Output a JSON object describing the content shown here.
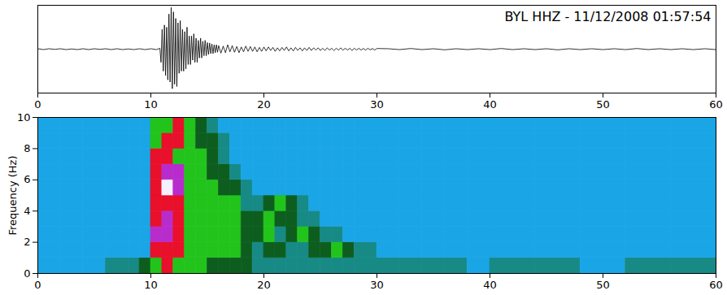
{
  "chart_data": [
    {
      "type": "line",
      "title": "BYL HHZ - 11/12/2008 01:57:54",
      "color": "#000000",
      "x": [
        0,
        0.5,
        1,
        1.5,
        2,
        2.5,
        3,
        3.5,
        4,
        4.5,
        5,
        5.5,
        6,
        6.5,
        7,
        7.5,
        8,
        8.5,
        9,
        9.5,
        10,
        10.5,
        10.8,
        10.9,
        11,
        11.1,
        11.2,
        11.3,
        11.4,
        11.5,
        11.6,
        11.7,
        11.8,
        11.9,
        12,
        12.1,
        12.2,
        12.3,
        12.4,
        12.5,
        12.6,
        12.7,
        12.8,
        12.9,
        13,
        13.1,
        13.2,
        13.3,
        13.4,
        13.5,
        13.6,
        13.7,
        13.8,
        13.9,
        14,
        14.1,
        14.2,
        14.3,
        14.4,
        14.5,
        14.6,
        14.7,
        14.8,
        14.9,
        15,
        15.1,
        15.2,
        15.3,
        15.4,
        15.5,
        15.6,
        15.7,
        15.8,
        15.9,
        16,
        16.2,
        16.4,
        16.6,
        16.8,
        17,
        17.2,
        17.4,
        17.6,
        17.8,
        18,
        18.2,
        18.4,
        18.6,
        18.8,
        19,
        19.2,
        19.4,
        19.6,
        19.8,
        20,
        20.2,
        20.4,
        20.6,
        20.8,
        21,
        21.2,
        21.4,
        21.6,
        21.8,
        22,
        22.2,
        22.4,
        22.6,
        22.8,
        23,
        23.2,
        23.4,
        23.6,
        23.8,
        24,
        24.2,
        24.4,
        24.6,
        24.8,
        25,
        25.2,
        25.4,
        25.6,
        25.8,
        26,
        26.2,
        26.4,
        26.6,
        26.8,
        27,
        27.2,
        27.4,
        27.6,
        27.8,
        28,
        28.2,
        28.4,
        28.6,
        28.8,
        29,
        29.2,
        29.4,
        29.6,
        29.8,
        30,
        31,
        32,
        33,
        34,
        35,
        36,
        37,
        38,
        39,
        40,
        41,
        42,
        43,
        44,
        45,
        46,
        47,
        48,
        49,
        50,
        51,
        52,
        53,
        54,
        55,
        56,
        57,
        58,
        59,
        60
      ],
      "values": [
        0.01,
        -0.01,
        0.01,
        -0.005,
        0.01,
        -0.01,
        0.005,
        -0.01,
        0.01,
        -0.01,
        0.01,
        -0.005,
        0.01,
        -0.01,
        0.01,
        -0.01,
        0.005,
        -0.01,
        0.01,
        -0.01,
        0.01,
        -0.01,
        0.02,
        -0.3,
        0.45,
        -0.5,
        0.55,
        -0.6,
        0.5,
        -0.7,
        0.8,
        -0.75,
        0.95,
        -0.9,
        0.85,
        -0.8,
        0.7,
        -0.85,
        0.6,
        -0.55,
        0.65,
        -0.5,
        0.45,
        -0.5,
        0.4,
        -0.45,
        0.5,
        -0.35,
        0.3,
        -0.35,
        0.3,
        -0.25,
        0.35,
        -0.3,
        0.25,
        -0.3,
        0.2,
        -0.2,
        0.25,
        -0.2,
        0.18,
        -0.15,
        0.2,
        -0.15,
        0.15,
        -0.12,
        0.14,
        -0.1,
        0.12,
        -0.1,
        0.1,
        -0.08,
        0.1,
        -0.07,
        0.08,
        -0.09,
        0.07,
        -0.08,
        0.1,
        -0.06,
        0.08,
        -0.07,
        0.06,
        -0.08,
        0.05,
        -0.06,
        0.07,
        -0.05,
        0.06,
        -0.05,
        0.05,
        -0.06,
        0.04,
        -0.05,
        0.05,
        -0.04,
        0.05,
        -0.03,
        0.04,
        -0.05,
        0.03,
        -0.04,
        0.04,
        -0.03,
        0.05,
        -0.04,
        0.03,
        -0.04,
        0.04,
        -0.03,
        0.03,
        -0.04,
        0.03,
        -0.03,
        0.04,
        -0.03,
        0.03,
        -0.02,
        0.03,
        -0.03,
        0.02,
        -0.03,
        0.03,
        -0.02,
        0.02,
        -0.03,
        0.02,
        -0.02,
        0.03,
        -0.02,
        0.02,
        -0.02,
        0.02,
        -0.03,
        0.02,
        -0.02,
        0.02,
        -0.02,
        0.015,
        -0.02,
        0.02,
        -0.015,
        0.015,
        -0.02,
        0.015,
        0.01,
        -0.01,
        0.015,
        -0.01,
        0.01,
        -0.015,
        0.01,
        -0.01,
        0.01,
        -0.01,
        0.015,
        -0.01,
        0.01,
        -0.01,
        0.01,
        -0.015,
        0.01,
        -0.01,
        0.01,
        -0.01,
        0.01,
        -0.01,
        0.015,
        -0.01,
        0.01,
        -0.01,
        0.01,
        -0.01,
        0.01,
        -0.01
      ],
      "xlim": [
        0,
        60
      ],
      "xticks": [
        0,
        10,
        20,
        30,
        40,
        50,
        60
      ],
      "ylim": [
        -1,
        1
      ],
      "tick_labels": "x"
    },
    {
      "type": "heatmap",
      "y_label": "Frequency (Hz)",
      "x_edges": [
        0,
        2,
        4,
        6,
        8,
        9,
        10,
        11,
        12,
        13,
        14,
        15,
        16,
        17,
        18,
        19,
        20,
        21,
        22,
        23,
        24,
        25,
        26,
        27,
        28,
        30,
        32,
        34,
        36,
        38,
        40,
        44,
        48,
        52,
        56,
        60
      ],
      "y_edges": [
        0,
        1,
        2,
        3,
        4,
        5,
        6,
        7,
        8,
        9,
        10
      ],
      "cells": [
        [
          0,
          0,
          0,
          0.15,
          0.15,
          0.3,
          0.5,
          0.7,
          0.5,
          0.5,
          0.5,
          0.3,
          0.3,
          0.3,
          0.3,
          0.15,
          0.15,
          0.15,
          0.15,
          0.15,
          0.15,
          0.15,
          0.15,
          0.15,
          0.15,
          0.15,
          0.15,
          0.15,
          0.15,
          0,
          0.15,
          0.15,
          0,
          0.15,
          0.15
        ],
        [
          0,
          0,
          0,
          0,
          0,
          0,
          0.7,
          0.7,
          0.7,
          0.5,
          0.5,
          0.5,
          0.5,
          0.5,
          0.3,
          0.15,
          0.3,
          0.3,
          0.15,
          0.15,
          0.3,
          0.3,
          0.5,
          0.3,
          0.15,
          0,
          0,
          0,
          0,
          0,
          0,
          0,
          0,
          0,
          0
        ],
        [
          0,
          0,
          0,
          0,
          0,
          0,
          0.8,
          0.8,
          0.7,
          0.5,
          0.5,
          0.5,
          0.5,
          0.5,
          0.3,
          0.3,
          0.5,
          0.15,
          0.3,
          0.5,
          0.3,
          0.15,
          0.15,
          0,
          0,
          0,
          0,
          0,
          0,
          0,
          0,
          0,
          0,
          0,
          0
        ],
        [
          0,
          0,
          0,
          0,
          0,
          0,
          0.7,
          0.8,
          0.7,
          0.5,
          0.5,
          0.5,
          0.5,
          0.5,
          0.3,
          0.3,
          0.5,
          0.3,
          0.3,
          0.15,
          0.15,
          0,
          0,
          0,
          0,
          0,
          0,
          0,
          0,
          0,
          0,
          0,
          0,
          0,
          0
        ],
        [
          0,
          0,
          0,
          0,
          0,
          0,
          0.7,
          0.7,
          0.7,
          0.5,
          0.5,
          0.5,
          0.5,
          0.5,
          0.15,
          0.15,
          0.3,
          0.5,
          0.3,
          0.15,
          0,
          0,
          0,
          0,
          0,
          0,
          0,
          0,
          0,
          0,
          0,
          0,
          0,
          0,
          0
        ],
        [
          0,
          0,
          0,
          0,
          0,
          0,
          0.7,
          0.95,
          0.8,
          0.5,
          0.5,
          0.5,
          0.3,
          0.3,
          0.15,
          0,
          0,
          0,
          0,
          0,
          0,
          0,
          0,
          0,
          0,
          0,
          0,
          0,
          0,
          0,
          0,
          0,
          0,
          0,
          0
        ],
        [
          0,
          0,
          0,
          0,
          0,
          0,
          0.7,
          0.8,
          0.8,
          0.5,
          0.5,
          0.3,
          0.3,
          0.15,
          0,
          0,
          0,
          0,
          0,
          0,
          0,
          0,
          0,
          0,
          0,
          0,
          0,
          0,
          0,
          0,
          0,
          0,
          0,
          0,
          0
        ],
        [
          0,
          0,
          0,
          0,
          0,
          0,
          0.7,
          0.7,
          0.5,
          0.5,
          0.5,
          0.3,
          0.15,
          0,
          0,
          0,
          0,
          0,
          0,
          0,
          0,
          0,
          0,
          0,
          0,
          0,
          0,
          0,
          0,
          0,
          0,
          0,
          0,
          0,
          0
        ],
        [
          0,
          0,
          0,
          0,
          0,
          0,
          0.5,
          0.7,
          0.7,
          0.5,
          0.3,
          0.3,
          0.15,
          0,
          0,
          0,
          0,
          0,
          0,
          0,
          0,
          0,
          0,
          0,
          0,
          0,
          0,
          0,
          0,
          0,
          0,
          0,
          0,
          0,
          0
        ],
        [
          0,
          0,
          0,
          0,
          0,
          0,
          0.5,
          0.5,
          0.7,
          0.5,
          0.3,
          0.15,
          0,
          0,
          0,
          0,
          0,
          0,
          0,
          0,
          0,
          0,
          0,
          0,
          0,
          0,
          0,
          0,
          0,
          0,
          0,
          0,
          0,
          0,
          0
        ]
      ],
      "zlim": [
        0,
        1
      ],
      "colors": [
        "#1aa5e6",
        "#178a86",
        "#0d5e1e",
        "#22c41c",
        "#e8102a",
        "#b82ccc",
        "#f4f0ff"
      ],
      "xlim": [
        0,
        60
      ],
      "xticks": [
        0,
        10,
        20,
        30,
        40,
        50,
        60
      ],
      "ylim": [
        0,
        10
      ],
      "yticks": [
        0,
        2,
        4,
        6,
        8,
        10
      ]
    }
  ]
}
